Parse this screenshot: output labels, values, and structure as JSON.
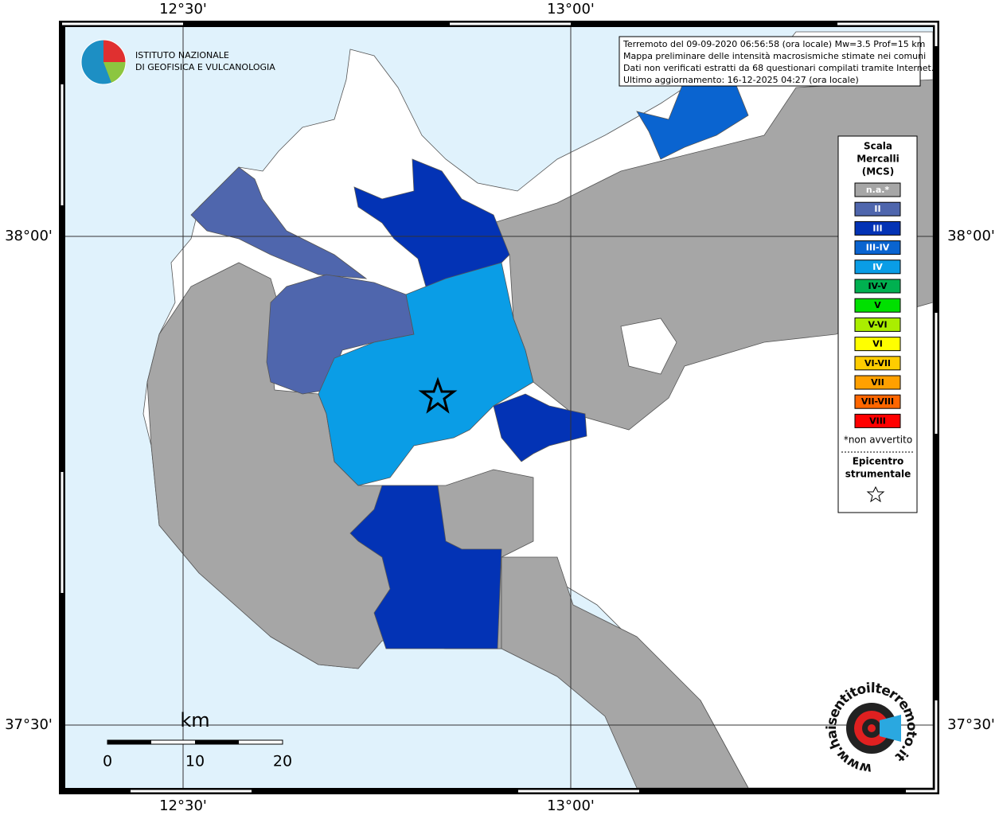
{
  "grid_labels": {
    "top": [
      "12°30'",
      "13°00'"
    ],
    "bottom": [
      "12°30'",
      "13°00'"
    ],
    "left": [
      "38°00'",
      "37°30'"
    ],
    "right": [
      "38°00'",
      "37°30'"
    ]
  },
  "info": [
    "Terremoto del 09-09-2020 06:56:58 (ora locale) Mw=3.5 Prof=15 km",
    "Mappa preliminare delle intensità macrosismiche stimate nei comuni",
    "Dati non verificati estratti da 68 questionari compilati tramite Internet.",
    "Ultimo aggiornamento: 16-12-2025 04:27 (ora locale)"
  ],
  "logo": [
    "ISTITUTO NAZIONALE",
    "DI GEOFISICA E VULCANOLOGIA"
  ],
  "legend": {
    "title": [
      "Scala",
      "Mercalli",
      "(MCS)"
    ],
    "entries": [
      {
        "label": "n.a.*",
        "color": "#a6a6a6"
      },
      {
        "label": "II",
        "color": "#4f66ad"
      },
      {
        "label": "III",
        "color": "#0333b5"
      },
      {
        "label": "III-IV",
        "color": "#0a64d0"
      },
      {
        "label": "IV",
        "color": "#0a9de6"
      },
      {
        "label": "IV-V",
        "color": "#00b050"
      },
      {
        "label": "V",
        "color": "#00e000"
      },
      {
        "label": "V-VI",
        "color": "#aaee00"
      },
      {
        "label": "VI",
        "color": "#ffff00"
      },
      {
        "label": "VI-VII",
        "color": "#ffcc00"
      },
      {
        "label": "VII",
        "color": "#ffa000"
      },
      {
        "label": "VII-VIII",
        "color": "#ff6600"
      },
      {
        "label": "VIII",
        "color": "#ff0000"
      }
    ],
    "note": "*non avvertito",
    "epicenter": [
      "Epicentro",
      "strumentale"
    ]
  },
  "scale_bar": {
    "unit": "km",
    "ticks": [
      0,
      10,
      20
    ]
  },
  "site_logo": "www.haisentitoilterremoto.it"
}
